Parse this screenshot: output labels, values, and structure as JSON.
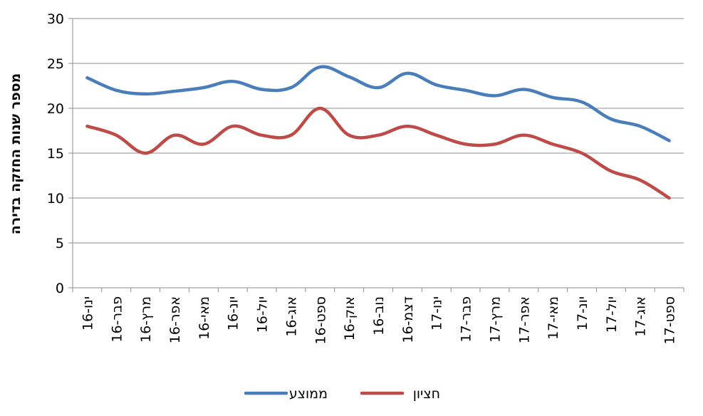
{
  "chart_data": {
    "type": "line",
    "ylabel": "מספר שנות החזקה בדירה",
    "xlabel": "",
    "ylim": [
      0,
      30
    ],
    "yticks": [
      "0",
      "5",
      "10",
      "15",
      "20",
      "25",
      "30"
    ],
    "grid": true,
    "legend_position": "bottom",
    "categories": [
      "ינו-16",
      "פבר-16",
      "מרץ-16",
      "אפר-16",
      "מאי-16",
      "יונ-16",
      "יול-16",
      "אוג-16",
      "ספט-16",
      "אוק-16",
      "נוב-16",
      "דצמ-16",
      "ינו-17",
      "פבר-17",
      "מרץ-17",
      "אפר-17",
      "מאי-17",
      "יונ-17",
      "יול-17",
      "אוג-17",
      "ספט-17"
    ],
    "series": [
      {
        "name": "ממוצע",
        "color": "#4A7EBB",
        "values": [
          23.4,
          22.0,
          21.6,
          21.9,
          22.3,
          23.0,
          22.1,
          22.3,
          24.6,
          23.5,
          22.3,
          23.9,
          22.6,
          22.0,
          21.4,
          22.1,
          21.2,
          20.7,
          18.8,
          18.0,
          16.4
        ]
      },
      {
        "name": "חציון",
        "color": "#BE4B48",
        "values": [
          18.0,
          17.0,
          15.0,
          17.0,
          16.0,
          18.0,
          17.0,
          17.0,
          20.0,
          17.0,
          17.0,
          18.0,
          17.0,
          16.0,
          16.0,
          17.0,
          16.0,
          15.0,
          13.0,
          12.0,
          10.0
        ]
      }
    ]
  }
}
